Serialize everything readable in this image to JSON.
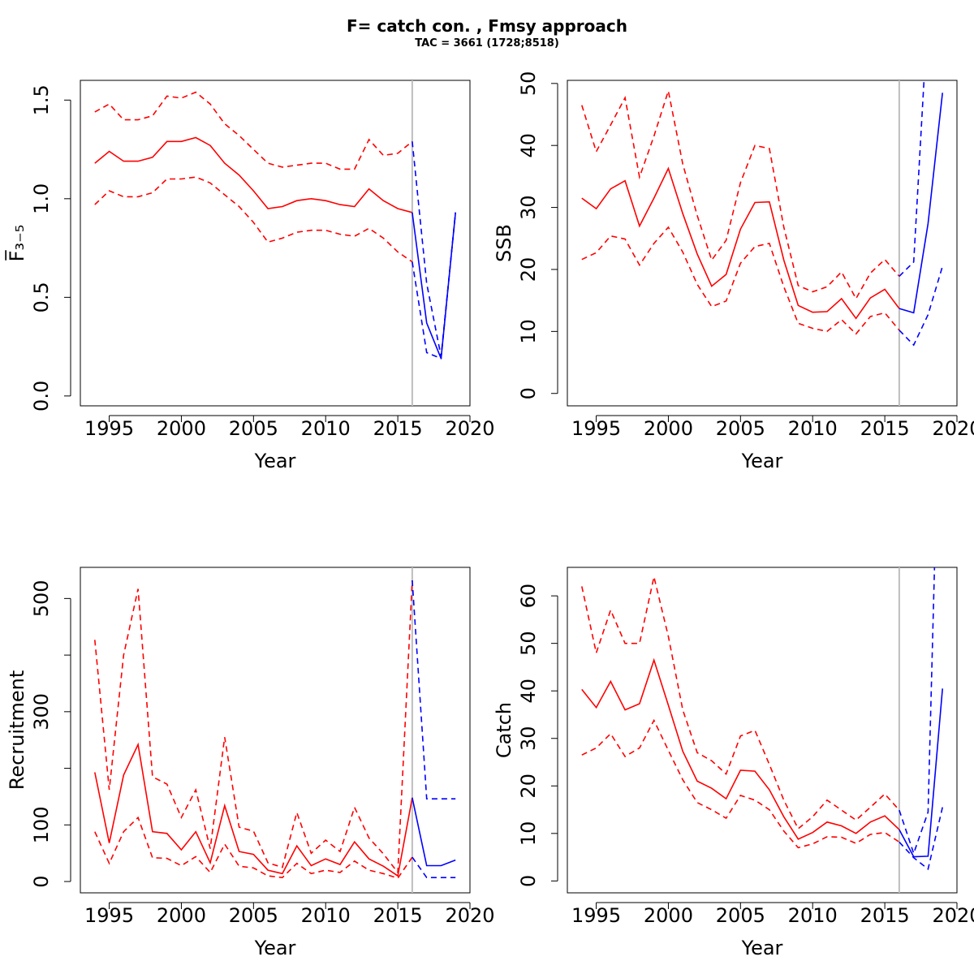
{
  "title": "F= catch con. , Fmsy approach",
  "subtitle": "TAC = 3661 (1728;8518)",
  "colors": {
    "historic": "#ff0000",
    "forecast": "#0000ff",
    "divider": "#bebebe"
  },
  "chart_data": [
    {
      "type": "line",
      "panel": "f",
      "ylabel": "F̅₃₋₅",
      "xlabel": "Year",
      "xlim": [
        1993,
        2020
      ],
      "ylim": [
        -0.05,
        1.6
      ],
      "xticks": [
        1995,
        2000,
        2005,
        2010,
        2015,
        2020
      ],
      "yticks": [
        0.0,
        0.5,
        1.0,
        1.5
      ],
      "ytick_labels": [
        "0.0",
        "0.5",
        "1.0",
        "1.5"
      ],
      "divider_x": 2016,
      "historic": {
        "x": [
          1994,
          1995,
          1996,
          1997,
          1998,
          1999,
          2000,
          2001,
          2002,
          2003,
          2004,
          2005,
          2006,
          2007,
          2008,
          2009,
          2010,
          2011,
          2012,
          2013,
          2014,
          2015,
          2016
        ],
        "mid": [
          1.18,
          1.24,
          1.19,
          1.19,
          1.21,
          1.29,
          1.29,
          1.31,
          1.27,
          1.18,
          1.12,
          1.04,
          0.95,
          0.96,
          0.99,
          1.0,
          0.99,
          0.97,
          0.96,
          1.05,
          0.99,
          0.95,
          0.93
        ],
        "upper": [
          1.44,
          1.48,
          1.4,
          1.4,
          1.42,
          1.52,
          1.51,
          1.54,
          1.48,
          1.38,
          1.32,
          1.25,
          1.18,
          1.16,
          1.17,
          1.18,
          1.18,
          1.15,
          1.15,
          1.3,
          1.22,
          1.23,
          1.29
        ],
        "lower": [
          0.97,
          1.04,
          1.01,
          1.01,
          1.03,
          1.1,
          1.1,
          1.11,
          1.08,
          1.02,
          0.96,
          0.88,
          0.78,
          0.8,
          0.83,
          0.84,
          0.84,
          0.82,
          0.81,
          0.85,
          0.8,
          0.73,
          0.68
        ]
      },
      "forecast": {
        "x": [
          2016,
          2017,
          2018,
          2019
        ],
        "mid": [
          0.93,
          0.37,
          0.19,
          0.93
        ],
        "upper": [
          1.29,
          0.57,
          0.2,
          0.93
        ],
        "lower": [
          0.68,
          0.22,
          0.19,
          0.93
        ]
      }
    },
    {
      "type": "line",
      "panel": "ssb",
      "ylabel": "SSB",
      "xlabel": "Year",
      "xlim": [
        1993,
        2020
      ],
      "ylim": [
        -2,
        50.5
      ],
      "xticks": [
        1995,
        2000,
        2005,
        2010,
        2015,
        2020
      ],
      "yticks": [
        0,
        10,
        20,
        30,
        40,
        50
      ],
      "ytick_labels": [
        "0",
        "10",
        "20",
        "30",
        "40",
        "50"
      ],
      "divider_x": 2016,
      "historic": {
        "x": [
          1994,
          1995,
          1996,
          1997,
          1998,
          1999,
          2000,
          2001,
          2002,
          2003,
          2004,
          2005,
          2006,
          2007,
          2008,
          2009,
          2010,
          2011,
          2012,
          2013,
          2014,
          2015,
          2016
        ],
        "mid": [
          31.5,
          29.8,
          33.0,
          34.3,
          27.0,
          31.5,
          36.3,
          29.0,
          22.5,
          17.3,
          19.2,
          26.5,
          30.8,
          30.9,
          21.5,
          14.2,
          13.1,
          13.2,
          15.3,
          12.1,
          15.4,
          16.8,
          13.7
        ],
        "upper": [
          46.5,
          39.0,
          43.3,
          47.7,
          34.9,
          41.5,
          48.8,
          37.0,
          28.7,
          21.5,
          24.7,
          34.0,
          40.0,
          39.5,
          26.8,
          17.4,
          16.4,
          17.2,
          19.6,
          15.3,
          19.4,
          21.6,
          18.9
        ],
        "lower": [
          21.6,
          22.7,
          25.4,
          24.9,
          20.7,
          24.2,
          26.8,
          22.8,
          17.6,
          14.0,
          14.9,
          21.0,
          23.7,
          24.2,
          17.2,
          11.3,
          10.5,
          10.0,
          11.9,
          9.6,
          12.4,
          13.0,
          10.2
        ]
      },
      "forecast": {
        "x": [
          2016,
          2017,
          2018,
          2019
        ],
        "mid": [
          13.7,
          13.0,
          27.4,
          48.5
        ],
        "upper": [
          18.9,
          21.2,
          62.0,
          90.0
        ],
        "lower": [
          10.2,
          7.8,
          12.7,
          20.5
        ]
      }
    },
    {
      "type": "line",
      "panel": "recruitment",
      "ylabel": "Recruitment",
      "xlabel": "Year",
      "xlim": [
        1993,
        2020
      ],
      "ylim": [
        -20,
        555
      ],
      "xticks": [
        1995,
        2000,
        2005,
        2010,
        2015,
        2020
      ],
      "yticks": [
        0,
        100,
        200,
        300,
        400,
        500
      ],
      "ytick_labels": [
        "0",
        "100",
        "",
        "300",
        "",
        "500"
      ],
      "divider_x": 2016,
      "historic": {
        "x": [
          1994,
          1995,
          1996,
          1997,
          1998,
          1999,
          2000,
          2001,
          2002,
          2003,
          2004,
          2005,
          2006,
          2007,
          2008,
          2009,
          2010,
          2011,
          2012,
          2013,
          2014,
          2015,
          2016
        ],
        "mid": [
          193,
          68,
          188,
          242,
          88,
          85,
          56,
          88,
          33,
          134,
          53,
          48,
          20,
          14,
          63,
          28,
          40,
          30,
          70,
          40,
          27,
          10,
          148
        ],
        "upper": [
          427,
          162,
          400,
          517,
          185,
          172,
          113,
          162,
          58,
          255,
          96,
          89,
          33,
          25,
          122,
          50,
          73,
          53,
          131,
          77,
          49,
          16,
          532
        ],
        "lower": [
          88,
          32,
          88,
          113,
          42,
          41,
          28,
          44,
          16,
          66,
          27,
          24,
          10,
          7,
          32,
          14,
          20,
          16,
          36,
          20,
          14,
          6,
          43
        ]
      },
      "forecast": {
        "x": [
          2016,
          2017,
          2018,
          2019
        ],
        "mid": [
          148,
          28,
          28,
          38
        ],
        "upper": [
          532,
          146,
          146,
          146
        ],
        "lower": [
          43,
          7,
          7,
          7
        ]
      }
    },
    {
      "type": "line",
      "panel": "catch",
      "ylabel": "Catch",
      "xlabel": "Year",
      "xlim": [
        1993,
        2020
      ],
      "ylim": [
        -2.5,
        66
      ],
      "xticks": [
        1995,
        2000,
        2005,
        2010,
        2015,
        2020
      ],
      "yticks": [
        0,
        10,
        20,
        30,
        40,
        50,
        60
      ],
      "ytick_labels": [
        "0",
        "10",
        "20",
        "30",
        "40",
        "50",
        "60"
      ],
      "divider_x": 2016,
      "historic": {
        "x": [
          1994,
          1995,
          1996,
          1997,
          1998,
          1999,
          2000,
          2001,
          2002,
          2003,
          2004,
          2005,
          2006,
          2007,
          2008,
          2009,
          2010,
          2011,
          2012,
          2013,
          2014,
          2015,
          2016
        ],
        "mid": [
          40.3,
          36.5,
          42.0,
          36.0,
          37.3,
          46.5,
          37.0,
          27.3,
          21.0,
          19.5,
          17.3,
          23.3,
          23.1,
          19.2,
          13.5,
          8.8,
          10.2,
          12.4,
          11.6,
          10.0,
          12.4,
          13.7,
          10.8
        ],
        "upper": [
          62.0,
          48.0,
          57.0,
          50.0,
          50.0,
          64.0,
          51.5,
          36.0,
          27.0,
          25.3,
          22.5,
          30.5,
          31.7,
          24.5,
          17.0,
          11.0,
          13.5,
          17.0,
          14.9,
          12.8,
          15.5,
          18.3,
          14.9
        ],
        "lower": [
          26.5,
          28.0,
          31.0,
          26.2,
          28.0,
          33.8,
          27.5,
          21.3,
          16.5,
          15.0,
          13.2,
          18.0,
          17.0,
          15.0,
          10.5,
          7.0,
          7.8,
          9.3,
          9.2,
          7.9,
          9.8,
          10.2,
          8.2
        ]
      },
      "forecast": {
        "x": [
          2016,
          2017,
          2018,
          2019
        ],
        "mid": [
          10.8,
          5.1,
          5.2,
          40.5
        ],
        "upper": [
          14.9,
          5.8,
          14.5,
          130.0
        ],
        "lower": [
          8.2,
          4.9,
          2.5,
          15.5
        ]
      }
    }
  ]
}
